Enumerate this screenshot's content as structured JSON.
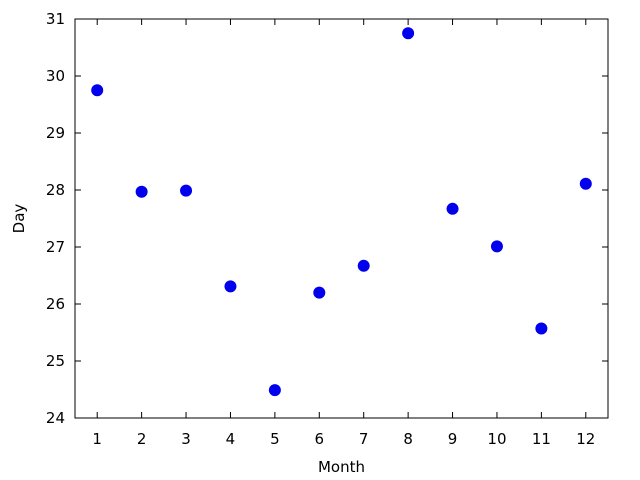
{
  "chart_data": {
    "type": "scatter",
    "title": "",
    "xlabel": "Month",
    "ylabel": "Day",
    "xlim": [
      0.5,
      12.5
    ],
    "ylim": [
      24,
      31
    ],
    "x_ticks": [
      1,
      2,
      3,
      4,
      5,
      6,
      7,
      8,
      9,
      10,
      11,
      12
    ],
    "y_ticks": [
      24,
      25,
      26,
      27,
      28,
      29,
      30,
      31
    ],
    "grid": false,
    "legend": "none",
    "series": [
      {
        "color": "#0000ee",
        "marker": "circle",
        "x": [
          1,
          2,
          3,
          4,
          5,
          6,
          7,
          8,
          9,
          10,
          11,
          12
        ],
        "y": [
          29.75,
          27.97,
          27.99,
          26.31,
          24.49,
          26.2,
          26.67,
          30.75,
          27.67,
          27.01,
          25.57,
          28.11
        ]
      }
    ]
  }
}
